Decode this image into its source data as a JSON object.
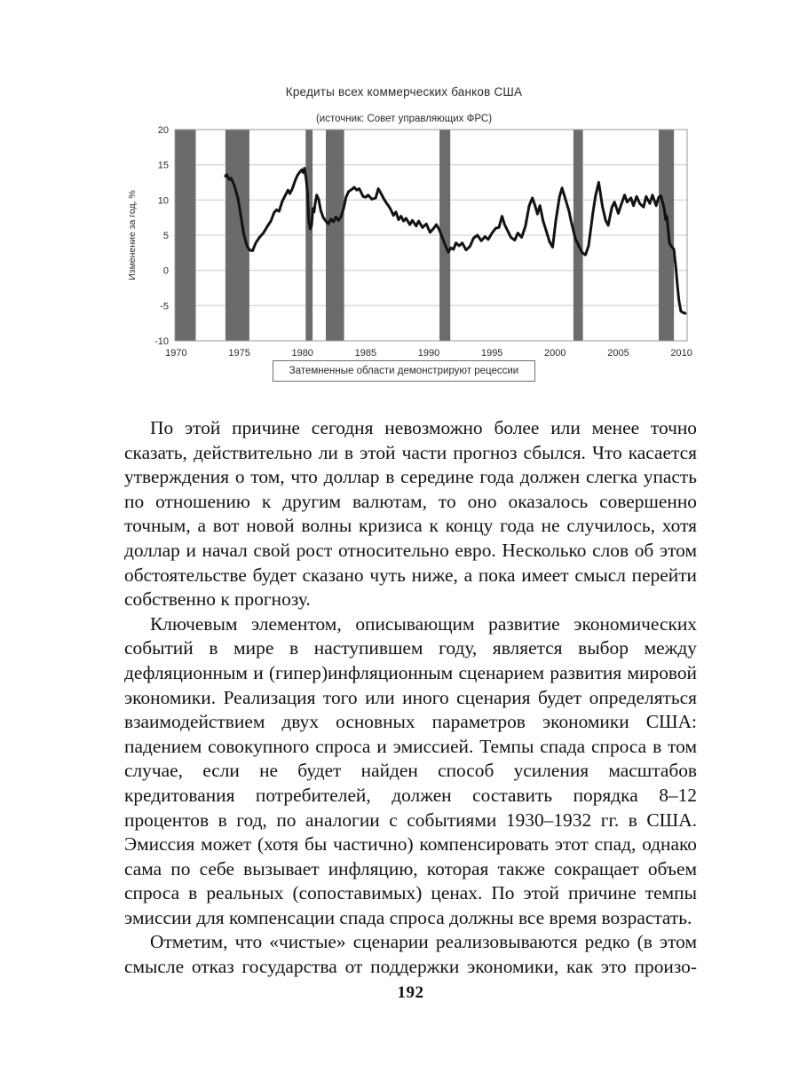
{
  "page": {
    "number": "192"
  },
  "chart": {
    "title": "Кредиты всех коммерческих банков США",
    "subtitle": "(источник: Совет управляющих ФРС)",
    "legend_note": "Затемненные области демонстрируют рецессии",
    "colors": {
      "line": "#121212",
      "band": "#6b6b6b",
      "grid": "#c9c9c9",
      "axis": "#9a9a9a",
      "tick_text": "#2b2b2b"
    }
  },
  "chart_data": {
    "type": "line",
    "title": "Кредиты всех коммерческих банков США",
    "subtitle": "(источник: Совет управляющих ФРС)",
    "xlabel": "",
    "ylabel": "Изменение за год, %",
    "xlim": [
      1969.9,
      2010.45
    ],
    "ylim": [
      -10,
      20
    ],
    "xticks": [
      1970,
      1975,
      1980,
      1985,
      1990,
      1995,
      2000,
      2005,
      2010
    ],
    "yticks": [
      20,
      15,
      10,
      5,
      0,
      -5,
      -10
    ],
    "grid": true,
    "legend_position": "below",
    "annotation": "Затемненные области демонстрируют рецессии",
    "recession_bands": [
      [
        1969.9,
        1971.55
      ],
      [
        1973.9,
        1975.8
      ],
      [
        1980.25,
        1980.8
      ],
      [
        1981.85,
        1983.3
      ],
      [
        1990.85,
        1991.7
      ],
      [
        2001.45,
        2002.2
      ],
      [
        2008.2,
        2009.4
      ]
    ],
    "series": [
      {
        "name": "Кредиты всех коммерческих банков США, изменение за год, %",
        "points": [
          [
            1973.9,
            13.4
          ],
          [
            1974.0,
            13.6
          ],
          [
            1974.2,
            12.9
          ],
          [
            1974.35,
            13.1
          ],
          [
            1974.6,
            12.1
          ],
          [
            1974.9,
            10.2
          ],
          [
            1975.1,
            8.0
          ],
          [
            1975.35,
            5.2
          ],
          [
            1975.6,
            3.5
          ],
          [
            1975.8,
            2.9
          ],
          [
            1976.05,
            2.8
          ],
          [
            1976.3,
            3.9
          ],
          [
            1976.6,
            4.7
          ],
          [
            1976.9,
            5.3
          ],
          [
            1977.2,
            6.2
          ],
          [
            1977.5,
            7.0
          ],
          [
            1977.75,
            8.2
          ],
          [
            1977.95,
            8.6
          ],
          [
            1978.15,
            8.4
          ],
          [
            1978.4,
            9.8
          ],
          [
            1978.65,
            10.7
          ],
          [
            1978.85,
            11.4
          ],
          [
            1979.0,
            10.9
          ],
          [
            1979.2,
            11.6
          ],
          [
            1979.45,
            12.9
          ],
          [
            1979.6,
            13.5
          ],
          [
            1979.8,
            14.0
          ],
          [
            1979.95,
            14.3
          ],
          [
            1980.05,
            13.9
          ],
          [
            1980.15,
            14.5
          ],
          [
            1980.3,
            12.9
          ],
          [
            1980.4,
            11.0
          ],
          [
            1980.5,
            7.0
          ],
          [
            1980.62,
            5.9
          ],
          [
            1980.72,
            6.4
          ],
          [
            1980.82,
            8.8
          ],
          [
            1980.92,
            8.3
          ],
          [
            1981.0,
            9.4
          ],
          [
            1981.12,
            10.7
          ],
          [
            1981.28,
            10.1
          ],
          [
            1981.45,
            8.5
          ],
          [
            1981.65,
            7.5
          ],
          [
            1981.85,
            7.0
          ],
          [
            1982.05,
            6.6
          ],
          [
            1982.25,
            7.3
          ],
          [
            1982.45,
            6.9
          ],
          [
            1982.65,
            7.6
          ],
          [
            1982.85,
            7.1
          ],
          [
            1983.05,
            7.6
          ],
          [
            1983.25,
            8.8
          ],
          [
            1983.45,
            10.4
          ],
          [
            1983.65,
            11.2
          ],
          [
            1983.9,
            11.5
          ],
          [
            1984.1,
            11.8
          ],
          [
            1984.3,
            11.4
          ],
          [
            1984.5,
            11.6
          ],
          [
            1984.8,
            10.5
          ],
          [
            1985.0,
            10.4
          ],
          [
            1985.2,
            10.7
          ],
          [
            1985.5,
            10.1
          ],
          [
            1985.8,
            10.3
          ],
          [
            1986.0,
            11.6
          ],
          [
            1986.2,
            11.0
          ],
          [
            1986.4,
            10.3
          ],
          [
            1986.6,
            9.7
          ],
          [
            1986.8,
            9.2
          ],
          [
            1987.0,
            8.6
          ],
          [
            1987.2,
            7.8
          ],
          [
            1987.4,
            8.3
          ],
          [
            1987.6,
            7.2
          ],
          [
            1987.8,
            7.7
          ],
          [
            1988.0,
            7.0
          ],
          [
            1988.2,
            7.4
          ],
          [
            1988.5,
            6.5
          ],
          [
            1988.7,
            7.1
          ],
          [
            1989.0,
            6.3
          ],
          [
            1989.2,
            7.0
          ],
          [
            1989.5,
            6.1
          ],
          [
            1989.8,
            6.6
          ],
          [
            1990.1,
            5.4
          ],
          [
            1990.35,
            5.9
          ],
          [
            1990.6,
            6.5
          ],
          [
            1990.8,
            5.9
          ],
          [
            1991.0,
            5.0
          ],
          [
            1991.3,
            3.6
          ],
          [
            1991.55,
            2.6
          ],
          [
            1991.75,
            3.2
          ],
          [
            1991.95,
            3.0
          ],
          [
            1992.15,
            3.9
          ],
          [
            1992.4,
            3.5
          ],
          [
            1992.65,
            3.9
          ],
          [
            1992.95,
            2.9
          ],
          [
            1993.25,
            3.4
          ],
          [
            1993.55,
            4.6
          ],
          [
            1993.85,
            5.0
          ],
          [
            1994.15,
            4.2
          ],
          [
            1994.45,
            4.8
          ],
          [
            1994.7,
            4.4
          ],
          [
            1995.0,
            5.3
          ],
          [
            1995.3,
            6.0
          ],
          [
            1995.55,
            6.1
          ],
          [
            1995.8,
            7.7
          ],
          [
            1996.0,
            6.5
          ],
          [
            1996.25,
            5.6
          ],
          [
            1996.5,
            4.7
          ],
          [
            1996.8,
            4.3
          ],
          [
            1997.05,
            5.3
          ],
          [
            1997.35,
            4.7
          ],
          [
            1997.65,
            6.3
          ],
          [
            1997.95,
            9.2
          ],
          [
            1998.2,
            10.3
          ],
          [
            1998.45,
            9.0
          ],
          [
            1998.6,
            8.0
          ],
          [
            1998.8,
            9.2
          ],
          [
            1999.05,
            7.0
          ],
          [
            1999.3,
            5.6
          ],
          [
            1999.55,
            4.1
          ],
          [
            1999.8,
            3.3
          ],
          [
            2000.05,
            7.0
          ],
          [
            2000.35,
            10.5
          ],
          [
            2000.55,
            11.7
          ],
          [
            2000.85,
            9.9
          ],
          [
            2001.1,
            8.4
          ],
          [
            2001.25,
            7.1
          ],
          [
            2001.6,
            4.5
          ],
          [
            2001.9,
            3.4
          ],
          [
            2002.15,
            2.5
          ],
          [
            2002.4,
            2.2
          ],
          [
            2002.65,
            3.5
          ],
          [
            2003.0,
            8.3
          ],
          [
            2003.2,
            10.6
          ],
          [
            2003.45,
            12.5
          ],
          [
            2003.75,
            9.0
          ],
          [
            2004.0,
            7.1
          ],
          [
            2004.2,
            6.4
          ],
          [
            2004.5,
            9.0
          ],
          [
            2004.7,
            9.7
          ],
          [
            2005.0,
            8.1
          ],
          [
            2005.2,
            9.2
          ],
          [
            2005.5,
            10.7
          ],
          [
            2005.7,
            9.7
          ],
          [
            2006.0,
            10.3
          ],
          [
            2006.2,
            9.2
          ],
          [
            2006.45,
            10.5
          ],
          [
            2006.7,
            9.5
          ],
          [
            2007.0,
            9.0
          ],
          [
            2007.2,
            10.5
          ],
          [
            2007.5,
            9.5
          ],
          [
            2007.7,
            10.7
          ],
          [
            2008.0,
            9.2
          ],
          [
            2008.2,
            10.4
          ],
          [
            2008.38,
            10.6
          ],
          [
            2008.55,
            9.4
          ],
          [
            2008.65,
            8.6
          ],
          [
            2008.75,
            7.2
          ],
          [
            2008.85,
            7.7
          ],
          [
            2009.05,
            3.9
          ],
          [
            2009.2,
            3.4
          ],
          [
            2009.4,
            3.0
          ],
          [
            2009.55,
            0.5
          ],
          [
            2009.7,
            -2.5
          ],
          [
            2009.8,
            -4.3
          ],
          [
            2009.95,
            -5.8
          ],
          [
            2010.15,
            -6.0
          ],
          [
            2010.3,
            -6.1
          ]
        ]
      }
    ]
  },
  "body": {
    "paragraphs": [
      "По этой причине сегодня невозможно более или менее точно сказать, действительно ли в этой части прогноз сбылся. Что касается утверждения о том, что доллар в середине года должен слегка упасть по отношению к другим валютам, то оно оказалось совершенно точным, а вот новой волны кризиса к концу года не случилось, хотя доллар и начал свой рост относительно евро. Несколько слов об этом обстоятельстве будет сказано чуть ниже, а пока имеет смысл перейти собственно к прогнозу.",
      "Ключевым элементом, описывающим развитие экономических событий в мире в наступившем году, является выбор между дефляционным и (гипер)инфляционным сценарием развития мировой экономики. Реализация того или иного сценария будет определяться взаимодействием двух основных параметров экономики США: падением совокупного спроса и эмиссией. Темпы спада спроса в том случае, если не будет найден способ усиления масштабов кредитования потребителей, должен составить порядка 8–12 процентов в год, по аналогии с событиями 1930–1932 гг. в США. Эмиссия может (хотя бы частично) компенсировать этот спад, однако сама по себе вызывает инфляцию, которая также сокращает объем спроса в реальных (сопоставимых) ценах. По этой причине темпы эмиссии для компенсации спада спроса должны все время возрастать.",
      "Отметим, что «чистые» сценарии реализовываются редко (в этом смысле отказ государства от поддержки экономики, как это произо-"
    ]
  }
}
